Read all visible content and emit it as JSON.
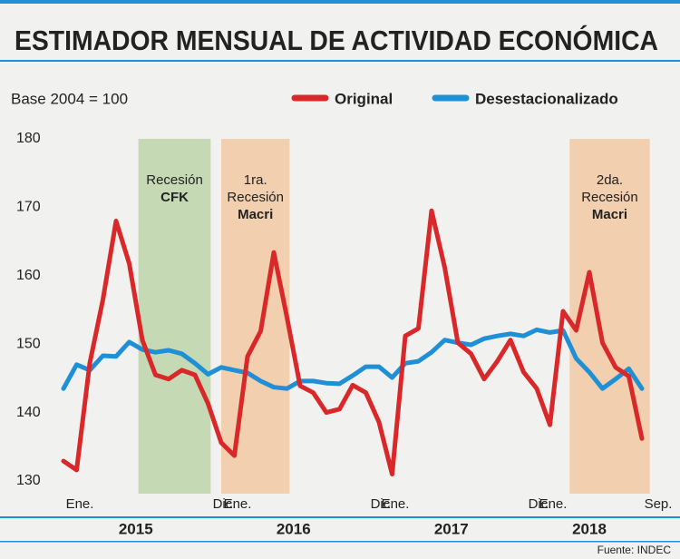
{
  "chart_data": {
    "type": "line",
    "title": "ESTIMADOR MENSUAL DE ACTIVIDAD ECONÓMICA",
    "subtitle": "Base 2004 = 100",
    "source": "Fuente: INDEC",
    "categories": [
      "Ene.",
      null,
      null,
      null,
      null,
      null,
      null,
      null,
      null,
      null,
      null,
      "Dic.",
      "Ene.",
      null,
      null,
      null,
      null,
      null,
      null,
      null,
      null,
      null,
      null,
      "Dic.",
      "Ene.",
      null,
      null,
      null,
      null,
      null,
      null,
      null,
      null,
      null,
      null,
      "Dic.",
      "Ene.",
      null,
      null,
      null,
      null,
      null,
      null,
      null,
      "Sep."
    ],
    "years": [
      "2015",
      "2016",
      "2017",
      "2018"
    ],
    "series": [
      {
        "name": "Original",
        "color": "#d8282a",
        "values": [
          132.9,
          131.6,
          147.2,
          156.5,
          168,
          161.8,
          150.6,
          145.5,
          144.9,
          146.2,
          145.5,
          141.3,
          135.6,
          133.7,
          148.2,
          151.9,
          163.4,
          153.9,
          143.9,
          142.9,
          140,
          140.5,
          144,
          142.9,
          138.6,
          131,
          151.2,
          152.3,
          169.5,
          161.2,
          150.2,
          148.6,
          144.9,
          147.5,
          150.6,
          145.9,
          143.5,
          138.2,
          154.8,
          152,
          160.5,
          150.2,
          146.6,
          145.3,
          136.2
        ]
      },
      {
        "name": "Desestacionalizado",
        "color": "#1f8fd6",
        "values": [
          143.5,
          147,
          146.2,
          148.3,
          148.2,
          150.3,
          149.2,
          148.8,
          149.1,
          148.6,
          147.2,
          145.6,
          146.6,
          146.2,
          145.8,
          144.6,
          143.7,
          143.5,
          144.6,
          144.6,
          144.3,
          144.2,
          145.4,
          146.7,
          146.7,
          145.1,
          147.2,
          147.5,
          148.8,
          150.6,
          150.2,
          149.9,
          150.8,
          151.2,
          151.5,
          151.2,
          152.1,
          151.7,
          152,
          147.9,
          145.9,
          143.5,
          144.9,
          146.4,
          143.5
        ]
      }
    ],
    "shaded_regions": [
      {
        "lines": [
          "Recesión"
        ],
        "bold_line": "CFK",
        "color": "#c5d9b5",
        "from": 5.7,
        "to": 11.2
      },
      {
        "lines": [
          "1ra.",
          "Recesión"
        ],
        "bold_line": "Macri",
        "color": "#f2cfae",
        "from": 12,
        "to": 17.2
      },
      {
        "lines": [
          "2da.",
          "Recesión"
        ],
        "bold_line": "Macri",
        "color": "#f2cfae",
        "from": 38.5,
        "to": 44.6
      }
    ],
    "ylim": [
      130,
      180
    ],
    "yticks": [
      130,
      140,
      150,
      160,
      170,
      180
    ],
    "grid": false
  }
}
